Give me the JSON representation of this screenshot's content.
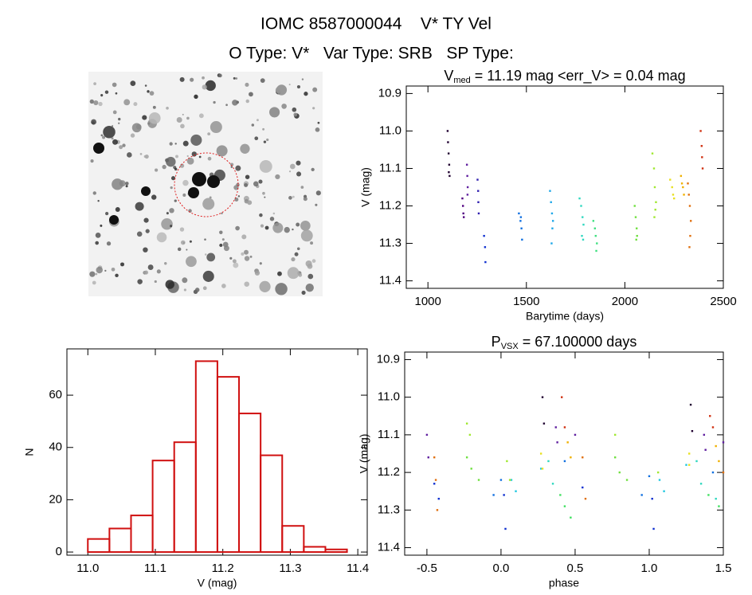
{
  "header": {
    "title": "IOMC 8587000044    V* TY Vel",
    "subtitle": "O Type: V*   Var Type: SRB   SP Type:"
  },
  "chart_data": [
    {
      "type": "scatter",
      "title": "V",
      "title_sub": "med",
      "title_rest": " = 11.19 mag <err_V> = 0.04 mag",
      "x_label": "Barytime (days)",
      "y_label": "V (mag)",
      "xlim": [
        890,
        2500
      ],
      "ylim": [
        11.42,
        10.88
      ],
      "xticks": [
        1000,
        1500,
        2000,
        2500
      ],
      "yticks": [
        10.9,
        {
          "value": 11,
          "label": "11.0"
        },
        11.1,
        11.2,
        11.3,
        11.4
      ],
      "series": [
        {
          "color": "#200030",
          "x": [
            1100,
            1102,
            1105,
            1108,
            1110,
            1106
          ],
          "values": [
            11.0,
            11.03,
            11.06,
            11.09,
            11.12,
            11.11
          ]
        },
        {
          "color": "#500080",
          "x": [
            1175,
            1178,
            1180,
            1182
          ],
          "values": [
            11.18,
            11.2,
            11.22,
            11.23
          ]
        },
        {
          "color": "#6020a0",
          "x": [
            1198,
            1200,
            1202,
            1201
          ],
          "values": [
            11.09,
            11.12,
            11.15,
            11.17
          ]
        },
        {
          "color": "#3020b0",
          "x": [
            1252,
            1255,
            1256,
            1258
          ],
          "values": [
            11.13,
            11.16,
            11.19,
            11.22
          ]
        },
        {
          "color": "#1030d0",
          "x": [
            1285,
            1290,
            1292
          ],
          "values": [
            11.28,
            11.31,
            11.35
          ]
        },
        {
          "color": "#1070e0",
          "x": [
            1462,
            1470,
            1475,
            1478,
            1472
          ],
          "values": [
            11.22,
            11.24,
            11.26,
            11.29,
            11.23
          ]
        },
        {
          "color": "#20a8e8",
          "x": [
            1620,
            1625,
            1630,
            1632,
            1628,
            1635
          ],
          "values": [
            11.16,
            11.19,
            11.22,
            11.26,
            11.3,
            11.24
          ]
        },
        {
          "color": "#30d8c0",
          "x": [
            1770,
            1778,
            1785,
            1790,
            1782,
            1788
          ],
          "values": [
            11.18,
            11.2,
            11.23,
            11.25,
            11.28,
            11.29
          ]
        },
        {
          "color": "#40e080",
          "x": [
            1840,
            1848,
            1852,
            1858,
            1855
          ],
          "values": [
            11.24,
            11.26,
            11.28,
            11.3,
            11.32
          ]
        },
        {
          "color": "#70e040",
          "x": [
            2050,
            2055,
            2060,
            2062,
            2058
          ],
          "values": [
            11.2,
            11.23,
            11.26,
            11.28,
            11.29
          ]
        },
        {
          "color": "#a0e830",
          "x": [
            2140,
            2148,
            2152,
            2158,
            2155,
            2150
          ],
          "values": [
            11.06,
            11.1,
            11.15,
            11.19,
            11.21,
            11.23
          ]
        },
        {
          "color": "#e8e020",
          "x": [
            2230,
            2240,
            2245,
            2250
          ],
          "values": [
            11.13,
            11.15,
            11.17,
            11.18
          ]
        },
        {
          "color": "#f0b000",
          "x": [
            2285,
            2290,
            2295,
            2300
          ],
          "values": [
            11.12,
            11.14,
            11.15,
            11.17
          ]
        },
        {
          "color": "#e07010",
          "x": [
            2320,
            2325,
            2330,
            2335,
            2332,
            2328
          ],
          "values": [
            11.14,
            11.17,
            11.2,
            11.24,
            11.28,
            11.31
          ]
        },
        {
          "color": "#d03010",
          "x": [
            2385,
            2390,
            2392,
            2395
          ],
          "values": [
            11.0,
            11.04,
            11.07,
            11.1
          ]
        }
      ]
    },
    {
      "type": "scatter",
      "title": "P",
      "title_sub": "VSX",
      "title_rest": " = 67.100000 days",
      "x_label": "phase",
      "y_label": "V (mag)",
      "xlim": [
        -0.65,
        1.5
      ],
      "ylim": [
        11.42,
        10.88
      ],
      "xticks": [
        -0.5,
        {
          "value": 0,
          "label": "0.0"
        },
        0.5,
        {
          "value": 1,
          "label": "1.0"
        },
        1.5
      ],
      "yticks": [
        10.9,
        {
          "value": 11,
          "label": "11.0"
        },
        11.1,
        11.2,
        11.3,
        11.4
      ],
      "series": [
        {
          "color": "#200030",
          "x": [
            0.28,
            0.29,
            1.28,
            1.29
          ],
          "values": [
            11.0,
            11.07,
            11.02,
            11.09
          ]
        },
        {
          "color": "#6020a0",
          "x": [
            -0.5,
            -0.49,
            0.37,
            0.38,
            0.5,
            1.37,
            1.38,
            1.5
          ],
          "values": [
            11.1,
            11.16,
            11.08,
            11.12,
            11.1,
            11.1,
            11.14,
            11.12
          ]
        },
        {
          "color": "#1030d0",
          "x": [
            -0.45,
            -0.42,
            0.02,
            0.03,
            0.55,
            1.02,
            1.03
          ],
          "values": [
            11.23,
            11.27,
            11.26,
            11.35,
            11.24,
            11.27,
            11.35
          ]
        },
        {
          "color": "#1070e0",
          "x": [
            -0.05,
            0.0,
            0.95,
            1.0,
            0.43,
            1.43
          ],
          "values": [
            11.26,
            11.22,
            11.26,
            11.21,
            11.17,
            11.2
          ]
        },
        {
          "color": "#20c8e0",
          "x": [
            0.07,
            0.1,
            0.27,
            1.07,
            1.1,
            1.25
          ],
          "values": [
            11.22,
            11.25,
            11.19,
            11.22,
            11.25,
            11.18
          ]
        },
        {
          "color": "#30d8c0",
          "x": [
            0.32,
            0.35,
            1.32,
            1.35,
            1.45
          ],
          "values": [
            11.17,
            11.23,
            11.17,
            11.23,
            11.27
          ]
        },
        {
          "color": "#40e060",
          "x": [
            0.4,
            0.43,
            0.47,
            1.4,
            1.47
          ],
          "values": [
            11.26,
            11.29,
            11.32,
            11.26,
            11.29
          ]
        },
        {
          "color": "#70e040",
          "x": [
            -0.23,
            -0.2,
            -0.15,
            0.77,
            0.8,
            0.85
          ],
          "values": [
            11.16,
            11.19,
            11.22,
            11.16,
            11.2,
            11.22
          ]
        },
        {
          "color": "#a0e830",
          "x": [
            -0.23,
            -0.21,
            0.04,
            0.06,
            0.77,
            1.06
          ],
          "values": [
            11.07,
            11.1,
            11.17,
            11.22,
            11.1,
            11.2
          ]
        },
        {
          "color": "#e8e020",
          "x": [
            0.27,
            0.28,
            1.27,
            1.27
          ],
          "values": [
            11.15,
            11.19,
            11.15,
            11.18
          ]
        },
        {
          "color": "#f0b000",
          "x": [
            0.45,
            0.47,
            1.45,
            1.47
          ],
          "values": [
            11.12,
            11.16,
            11.13,
            11.17
          ]
        },
        {
          "color": "#e07010",
          "x": [
            -0.45,
            -0.44,
            -0.43,
            0.55,
            0.57,
            1.5
          ],
          "values": [
            11.16,
            11.22,
            11.3,
            11.16,
            11.27,
            11.2
          ]
        },
        {
          "color": "#d03010",
          "x": [
            0.41,
            0.43,
            1.41,
            1.43
          ],
          "values": [
            11.0,
            11.08,
            11.05,
            11.08
          ]
        }
      ]
    },
    {
      "type": "histogram",
      "x_label": "V (mag)",
      "y_label": "N",
      "color": "#d01010",
      "xlim": [
        10.969,
        11.414
      ],
      "ylim": [
        -1.2,
        77.7
      ],
      "xticks": [
        {
          "value": 11,
          "label": "11.0"
        },
        11.1,
        11.2,
        11.3,
        11.4
      ],
      "yticks": [
        0,
        20,
        40,
        60
      ],
      "bins": [
        11.0,
        11.032,
        11.064,
        11.096,
        11.128,
        11.16,
        11.192,
        11.224,
        11.256,
        11.288,
        11.32,
        11.352,
        11.384
      ],
      "values": [
        5,
        9,
        14,
        35,
        42,
        73,
        67,
        53,
        37,
        10,
        2,
        1
      ]
    }
  ]
}
